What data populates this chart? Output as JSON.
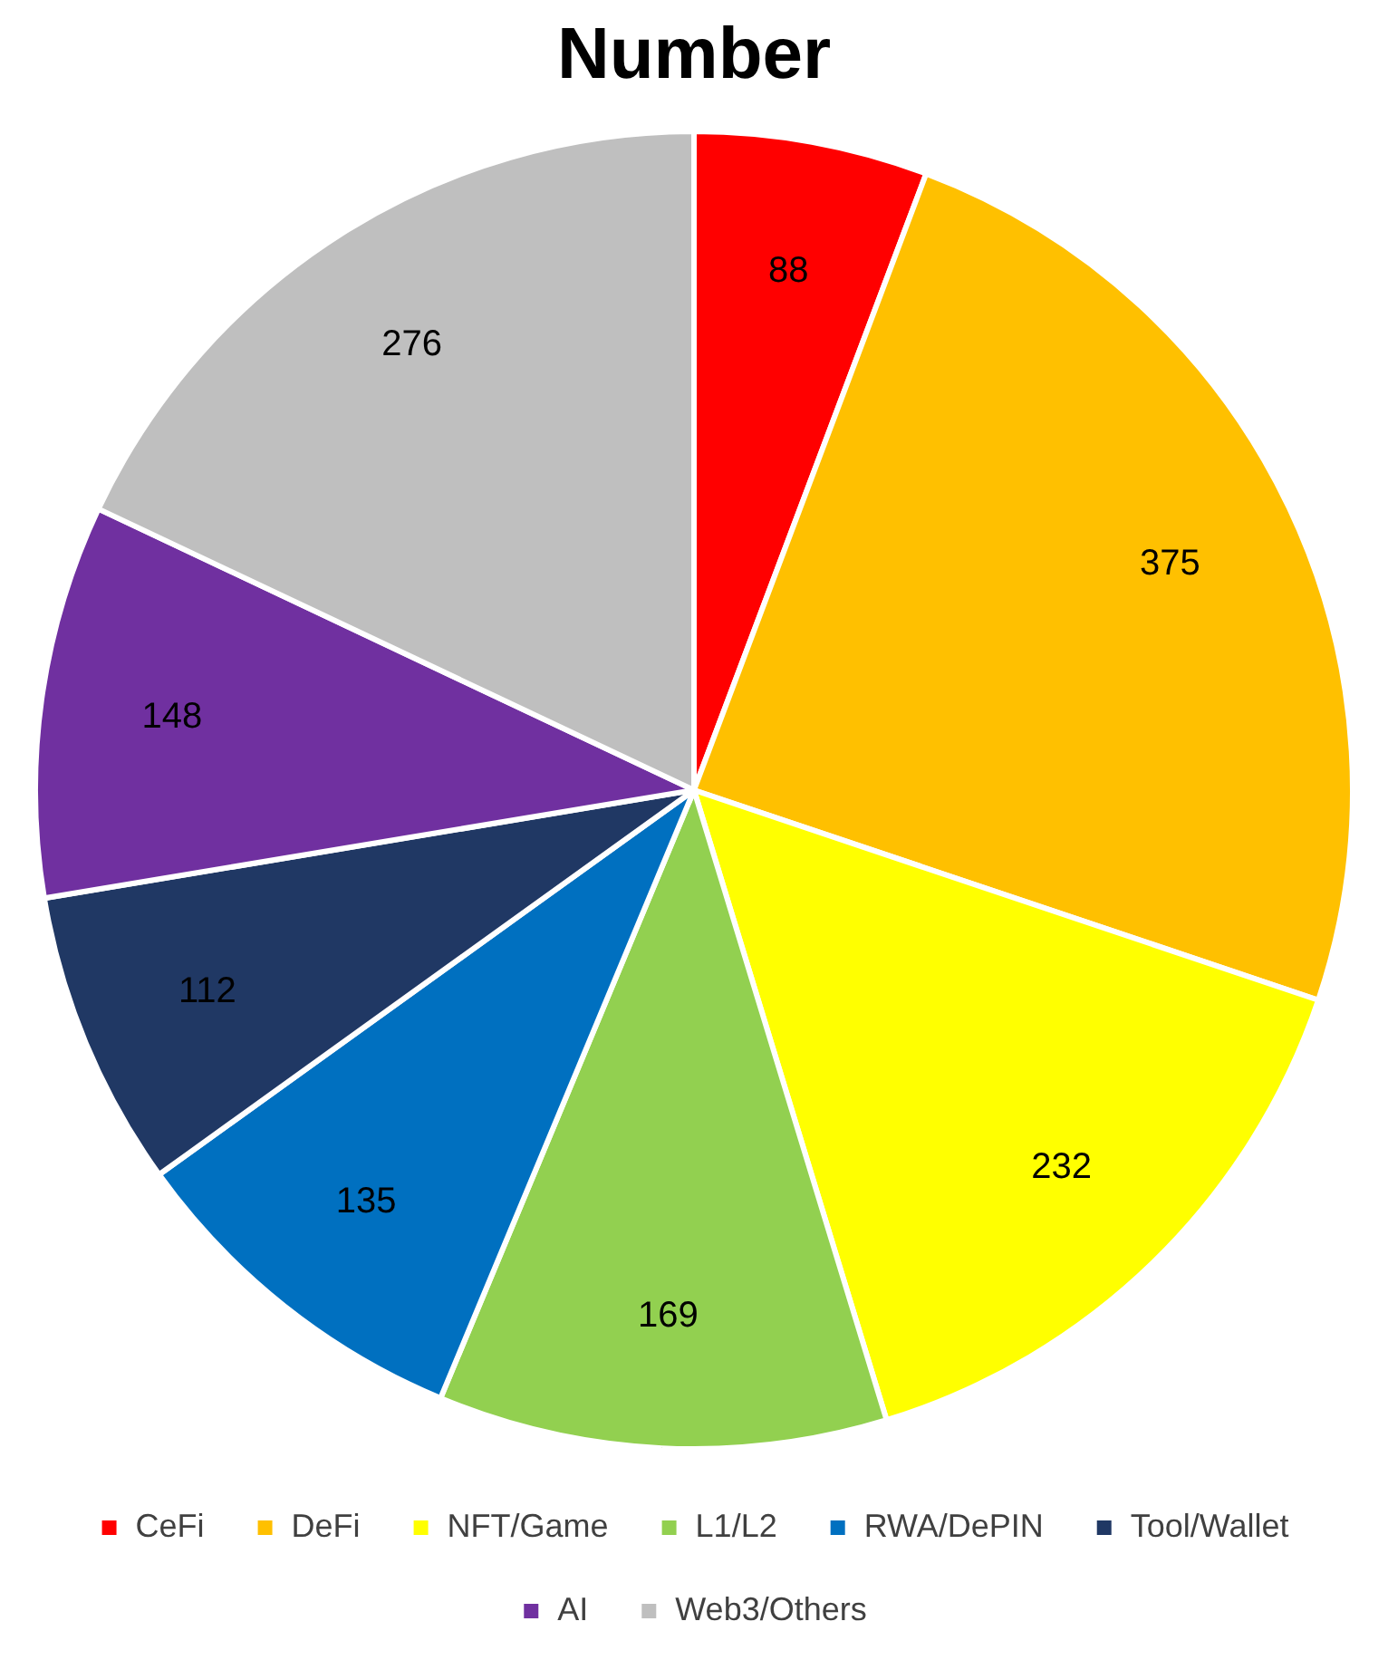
{
  "chart_data": {
    "type": "pie",
    "title": "Number",
    "categories": [
      "CeFi",
      "DeFi",
      "NFT/Game",
      "L1/L2",
      "RWA/DePIN",
      "Tool/Wallet",
      "AI",
      "Web3/Others"
    ],
    "values": [
      88,
      375,
      232,
      169,
      135,
      112,
      148,
      276
    ],
    "colors": [
      "#ff0000",
      "#ffc000",
      "#ffff00",
      "#92d050",
      "#0070c0",
      "#203864",
      "#7030a0",
      "#bfbfbf"
    ],
    "data_labels": true,
    "legend": "bottom"
  }
}
